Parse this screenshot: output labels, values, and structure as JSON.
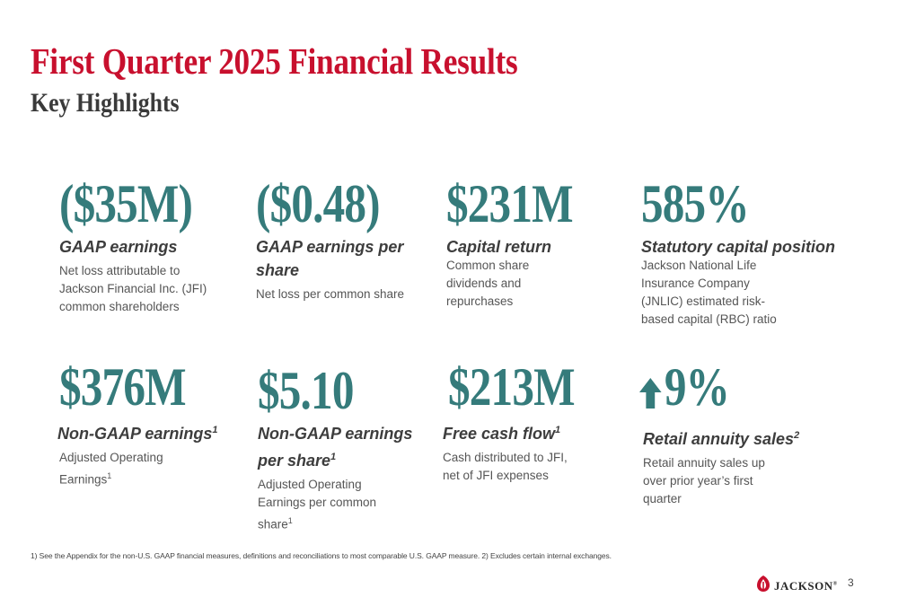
{
  "header": {
    "title": "First Quarter 2025 Financial Results",
    "subtitle": "Key Highlights"
  },
  "metrics": [
    {
      "value": "($35M)",
      "label": "GAAP earnings",
      "label_sup": "",
      "desc": "Net loss attributable to Jackson Financial Inc. (JFI) common shareholders",
      "desc_sup": ""
    },
    {
      "value": "($0.48)",
      "label": "GAAP earnings per share",
      "label_sup": "",
      "desc": "Net loss per common share",
      "desc_sup": ""
    },
    {
      "value": "$231M",
      "label": "Capital return",
      "label_sup": "",
      "desc": "Common share dividends and repurchases",
      "desc_sup": ""
    },
    {
      "value": "585%",
      "label": "Statutory capital position",
      "label_sup": "",
      "desc": "Jackson National Life Insurance Company (JNLIC) estimated risk-based capital (RBC) ratio",
      "desc_sup": ""
    },
    {
      "value": "$376M",
      "label": "Non-GAAP earnings",
      "label_sup": "1",
      "desc": "Adjusted Operating Earnings",
      "desc_sup": "1"
    },
    {
      "value": "$5.10",
      "label": "Non-GAAP earnings per share",
      "label_sup": "1",
      "desc": "Adjusted Operating Earnings per common share",
      "desc_sup": "1"
    },
    {
      "value": "$213M",
      "label": "Free cash flow",
      "label_sup": "1",
      "desc": "Cash distributed to JFI, net of JFI expenses",
      "desc_sup": ""
    },
    {
      "value": "9%",
      "label": "Retail annuity sales",
      "label_sup": "2",
      "desc": "Retail annuity sales up over prior year’s first quarter",
      "desc_sup": "",
      "icon": "up-arrow-icon"
    }
  ],
  "footnote": "1) See the Appendix for the non-U.S. GAAP financial measures, definitions and reconciliations to most comparable U.S. GAAP measure.  2) Excludes certain internal exchanges.",
  "logo": {
    "text": "JACKSON",
    "mark": "®",
    "icon": "jackson-logo-icon"
  },
  "page_number": "3",
  "colors": {
    "title": "#c8102e",
    "accent": "#357b7b",
    "text": "#3d3d3d"
  }
}
